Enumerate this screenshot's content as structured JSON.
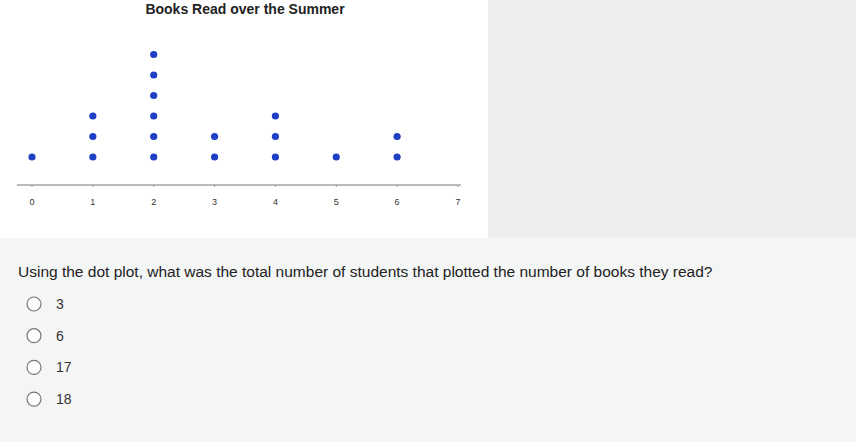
{
  "chart_data": {
    "type": "dot",
    "title": "Books Read over the Summer",
    "x": [
      0,
      1,
      2,
      3,
      4,
      5,
      6
    ],
    "values": [
      1,
      3,
      6,
      2,
      3,
      1,
      2
    ],
    "color": "#1f3fc4",
    "xlim": [
      -0.25,
      7.05
    ],
    "xticks": [
      0,
      1,
      2,
      3,
      4,
      5,
      6,
      7
    ],
    "grid": false,
    "tick_labels": "x"
  },
  "question": "Using the dot plot, what was the total number of students that plotted the number of books they read?",
  "options": [
    "3",
    "6",
    "17",
    "18"
  ]
}
